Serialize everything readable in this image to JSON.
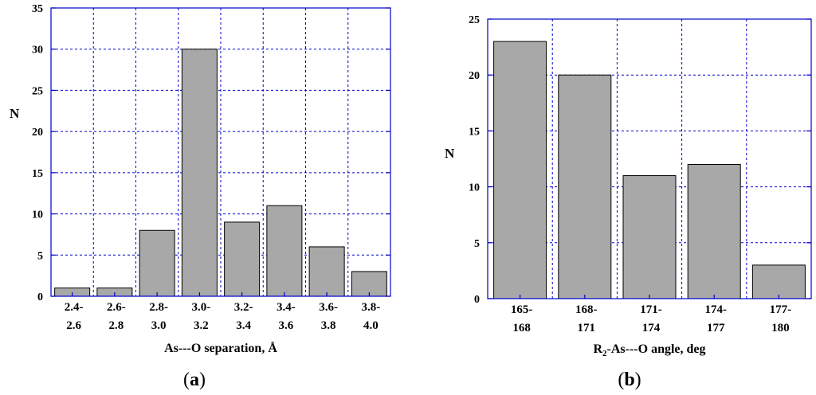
{
  "chart_data": [
    {
      "type": "bar",
      "panel_label": "a",
      "xlabel": "As---O separation, Å",
      "ylabel": "N",
      "ylim": [
        0,
        35
      ],
      "yticks": [
        0,
        5,
        10,
        15,
        20,
        25,
        30,
        35
      ],
      "categories": [
        [
          "2.4-",
          "2.6"
        ],
        [
          "2.6-",
          "2.8"
        ],
        [
          "2.8-",
          "3.0"
        ],
        [
          "3.0-",
          "3.2"
        ],
        [
          "3.2-",
          "3.4"
        ],
        [
          "3.4-",
          "3.6"
        ],
        [
          "3.6-",
          "3.8"
        ],
        [
          "3.8-",
          "4.0"
        ]
      ],
      "values": [
        1,
        1,
        8,
        30,
        9,
        11,
        6,
        3
      ],
      "grid": true,
      "bar_color": "#a8a8a8",
      "grid_color": "#0000cc",
      "frame_color": "#0000cc"
    },
    {
      "type": "bar",
      "panel_label": "b",
      "xlabel_parts": [
        "R",
        "2",
        "-As---O angle, deg"
      ],
      "ylabel": "N",
      "ylim": [
        0,
        25
      ],
      "yticks": [
        0,
        5,
        10,
        15,
        20,
        25
      ],
      "categories": [
        [
          "165-",
          "168"
        ],
        [
          "168-",
          "171"
        ],
        [
          "171-",
          "174"
        ],
        [
          "174-",
          "177"
        ],
        [
          "177-",
          "180"
        ]
      ],
      "values": [
        23,
        20,
        11,
        12,
        3
      ],
      "grid": true,
      "bar_color": "#a8a8a8",
      "grid_color": "#0000cc",
      "frame_color": "#0000cc"
    }
  ]
}
